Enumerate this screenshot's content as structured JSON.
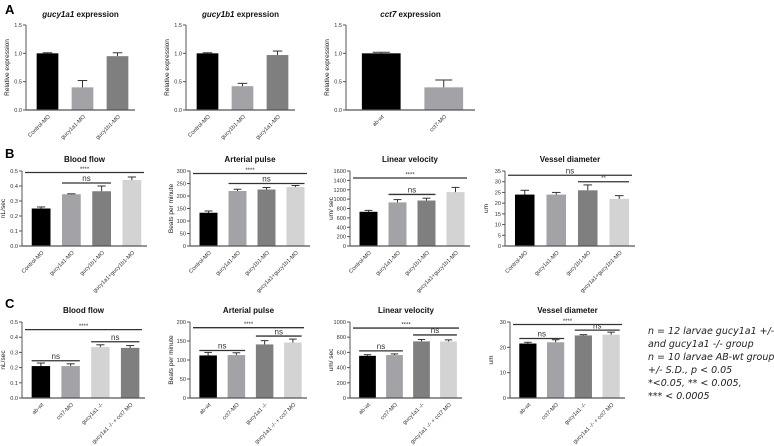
{
  "panel_letters": [
    "A",
    "B",
    "C"
  ],
  "colors": {
    "black": "#000000",
    "light_gray": "#a3a3a7",
    "dark_gray": "#7f7f7f",
    "pale_gray": "#d3d3d3",
    "axis": "#555555"
  },
  "footnote": [
    "n = 12 larvae gucy1a1 +/-",
    "and  gucy1a1 -/-  group",
    "n = 10 larvae  AB-wt group",
    "+/- S.D., p < 0.05",
    "*<0.05, ** < 0.005,",
    "*** < 0.0005"
  ],
  "chart_data": [
    {
      "type": "bar",
      "panel": "A",
      "title": "gucy1a1 expression",
      "title_italic_word": "gucy1a1",
      "ylabel": "Relative expression",
      "ylim": [
        0,
        1.5
      ],
      "ticks": [
        "0.0",
        "0.5",
        "1.0",
        "1.5"
      ],
      "categories": [
        "Control-MO",
        "gucy1a1-MO",
        "gucy1b1-MO"
      ],
      "values": [
        1.0,
        0.4,
        0.95
      ],
      "errors": [
        0.01,
        0.12,
        0.06
      ],
      "colors": [
        "#000000",
        "#a3a3a7",
        "#7f7f7f"
      ],
      "brackets": []
    },
    {
      "type": "bar",
      "panel": "A",
      "title": "gucy1b1 expression",
      "title_italic_word": "gucy1b1",
      "ylabel": "Relative expression",
      "ylim": [
        0,
        1.5
      ],
      "ticks": [
        "0.0",
        "0.5",
        "1.0",
        "1.5"
      ],
      "categories": [
        "Control-MO",
        "gucy1b1-MO",
        "gucy1a1-MO"
      ],
      "values": [
        1.0,
        0.42,
        0.97
      ],
      "errors": [
        0.01,
        0.05,
        0.07
      ],
      "colors": [
        "#000000",
        "#a3a3a7",
        "#7f7f7f"
      ],
      "brackets": []
    },
    {
      "type": "bar",
      "panel": "A",
      "title": "cct7 expression",
      "title_italic_word": "cct7",
      "ylabel": "Relative expression",
      "ylim": [
        0,
        1.5
      ],
      "ticks": [
        "0.0",
        "0.5",
        "1.0",
        "1.5"
      ],
      "categories": [
        "ab-wt",
        "cct7-MO"
      ],
      "values": [
        1.0,
        0.4
      ],
      "errors": [
        0.02,
        0.13
      ],
      "colors": [
        "#000000",
        "#a3a3a7"
      ],
      "brackets": []
    },
    {
      "type": "bar",
      "panel": "B",
      "title": "Blood flow",
      "ylabel": "nL/sec",
      "ylim": [
        0,
        0.5
      ],
      "ticks": [
        "0.0",
        "0.1",
        "0.2",
        "0.3",
        "0.4",
        "0.5"
      ],
      "categories": [
        "Control-MO",
        "gucy1a1-MO",
        "gucy1b1-MO",
        "gucy1a1+gucy1b1-MO"
      ],
      "values": [
        0.25,
        0.345,
        0.365,
        0.44
      ],
      "errors": [
        0.01,
        0.003,
        0.035,
        0.02
      ],
      "colors": [
        "#000000",
        "#a3a3a7",
        "#7f7f7f",
        "#d3d3d3"
      ],
      "brackets": [
        {
          "from": 0,
          "to": 3,
          "y": 0.49,
          "label": "****"
        },
        {
          "from": 1,
          "to": 2,
          "y": 0.42,
          "label": "ns"
        }
      ]
    },
    {
      "type": "bar",
      "panel": "B",
      "title": "Arterial pulse",
      "ylabel": "Beats per minute",
      "ylim": [
        0,
        300
      ],
      "ticks": [
        "0",
        "50",
        "100",
        "150",
        "200",
        "250",
        "300"
      ],
      "categories": [
        "Control-MO",
        "gucy1a1-MO",
        "gucy1b1-MO",
        "gucy1a1+gucy1b1-MO"
      ],
      "values": [
        133,
        220,
        226,
        236
      ],
      "errors": [
        7,
        7,
        8,
        6
      ],
      "colors": [
        "#000000",
        "#a3a3a7",
        "#7f7f7f",
        "#d3d3d3"
      ],
      "brackets": [
        {
          "from": 0,
          "to": 3,
          "y": 290,
          "label": "****"
        },
        {
          "from": 1,
          "to": 3,
          "y": 250,
          "label": "ns"
        }
      ]
    },
    {
      "type": "bar",
      "panel": "B",
      "title": "Linear velocity",
      "ylabel": "um/ sec",
      "ylim": [
        0,
        1600
      ],
      "ticks": [
        "0",
        "200",
        "400",
        "600",
        "800",
        "1000",
        "1200",
        "1400",
        "1600"
      ],
      "categories": [
        "Control-MO",
        "gucy1a1-MO",
        "gucy1b1-MO",
        "gucy1a1+gucy1b1-MO"
      ],
      "values": [
        730,
        930,
        970,
        1150
      ],
      "errors": [
        30,
        60,
        50,
        100
      ],
      "colors": [
        "#000000",
        "#a3a3a7",
        "#7f7f7f",
        "#d3d3d3"
      ],
      "brackets": [
        {
          "from": 0,
          "to": 3,
          "y": 1450,
          "label": "****"
        },
        {
          "from": 1,
          "to": 2,
          "y": 1100,
          "label": "ns"
        }
      ]
    },
    {
      "type": "bar",
      "panel": "B",
      "title": "Vessel diameter",
      "ylabel": "um",
      "ylim": [
        0,
        35
      ],
      "ticks": [
        "0",
        "5",
        "10",
        "15",
        "20",
        "25",
        "30",
        "35"
      ],
      "categories": [
        "Control-MO",
        "gucy1a1-MO",
        "gucy1b1-MO",
        "gucy1a1+gucy1b1-MO"
      ],
      "values": [
        24,
        24,
        26,
        22
      ],
      "errors": [
        2,
        1,
        2.5,
        1.5
      ],
      "colors": [
        "#000000",
        "#a3a3a7",
        "#7f7f7f",
        "#d3d3d3"
      ],
      "brackets": [
        {
          "from": 0,
          "to": 3,
          "y": 33,
          "label": "ns"
        },
        {
          "from": 2,
          "to": 3,
          "y": 30,
          "label": "**"
        }
      ]
    },
    {
      "type": "bar",
      "panel": "C",
      "title": "Blood flow",
      "ylabel": "nL/sec",
      "ylim": [
        0,
        0.5
      ],
      "ticks": [
        "0.0",
        "0.1",
        "0.2",
        "0.3",
        "0.4",
        "0.5"
      ],
      "categories": [
        "ab-wt",
        "cct7-MO",
        "gucy1a1 -/-",
        "gucy1a1 -/- + cct7 MO"
      ],
      "values": [
        0.21,
        0.21,
        0.335,
        0.33
      ],
      "errors": [
        0.02,
        0.015,
        0.015,
        0.015
      ],
      "colors": [
        "#000000",
        "#a3a3a7",
        "#d3d3d3",
        "#7f7f7f"
      ],
      "brackets": [
        {
          "from": 0,
          "to": 3,
          "y": 0.45,
          "label": "****"
        },
        {
          "from": 0,
          "to": 1,
          "y": 0.245,
          "label": "ns"
        },
        {
          "from": 2,
          "to": 3,
          "y": 0.37,
          "label": "ns"
        }
      ]
    },
    {
      "type": "bar",
      "panel": "C",
      "title": "Arterial pulse",
      "ylabel": "Beats per minute",
      "ylim": [
        0,
        200
      ],
      "ticks": [
        "0",
        "50",
        "100",
        "150",
        "200"
      ],
      "categories": [
        "ab-wt",
        "cct7-MO",
        "gucy1a1 -/-",
        "gucy1a1 -/- + cct7 MO"
      ],
      "values": [
        112,
        113,
        141,
        146
      ],
      "errors": [
        8,
        6,
        10,
        9
      ],
      "colors": [
        "#000000",
        "#a3a3a7",
        "#7f7f7f",
        "#d3d3d3"
      ],
      "brackets": [
        {
          "from": 0,
          "to": 3,
          "y": 185,
          "label": "****"
        },
        {
          "from": 0,
          "to": 1,
          "y": 125,
          "label": "ns"
        },
        {
          "from": 2,
          "to": 3,
          "y": 163,
          "label": "ns"
        }
      ]
    },
    {
      "type": "bar",
      "panel": "C",
      "title": "Linear velocity",
      "ylabel": "um/ sec",
      "ylim": [
        0,
        1000
      ],
      "ticks": [
        "0",
        "200",
        "400",
        "600",
        "800",
        "1000"
      ],
      "categories": [
        "ab-wt",
        "cct7-MO",
        "gucy1a1 -/-",
        "gucy1a1 -/- + cct7 MO"
      ],
      "values": [
        555,
        565,
        745,
        745
      ],
      "errors": [
        15,
        15,
        25,
        20
      ],
      "colors": [
        "#000000",
        "#a3a3a7",
        "#7f7f7f",
        "#d3d3d3"
      ],
      "brackets": [
        {
          "from": 0,
          "to": 3,
          "y": 920,
          "label": "****"
        },
        {
          "from": 0,
          "to": 1,
          "y": 620,
          "label": "ns"
        },
        {
          "from": 2,
          "to": 3,
          "y": 830,
          "label": "ns"
        }
      ]
    },
    {
      "type": "bar",
      "panel": "C",
      "title": "Vessel diameter",
      "ylabel": "um",
      "ylim": [
        0,
        30
      ],
      "ticks": [
        "0",
        "10",
        "20",
        "30"
      ],
      "categories": [
        "ab-wt",
        "cct7-MO",
        "gucy1a1 -/-",
        "gucy1a1 -/- + cct7 MO"
      ],
      "values": [
        21.5,
        22,
        24.7,
        25
      ],
      "errors": [
        0.5,
        1,
        0.3,
        1
      ],
      "colors": [
        "#000000",
        "#a3a3a7",
        "#7f7f7f",
        "#d3d3d3"
      ],
      "brackets": [
        {
          "from": 0,
          "to": 3,
          "y": 29,
          "label": "****"
        },
        {
          "from": 0,
          "to": 1,
          "y": 23.5,
          "label": "ns"
        },
        {
          "from": 2,
          "to": 3,
          "y": 26.8,
          "label": "ns"
        }
      ]
    }
  ]
}
